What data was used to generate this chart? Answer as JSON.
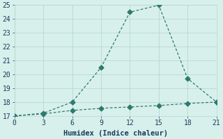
{
  "line1_x": [
    0,
    3,
    6,
    9,
    12,
    15,
    18,
    21
  ],
  "line1_y": [
    17.0,
    17.2,
    18.0,
    20.5,
    24.5,
    25.0,
    19.7,
    18.0
  ],
  "line2_x": [
    0,
    3,
    6,
    9,
    12,
    15,
    18,
    21
  ],
  "line2_y": [
    17.0,
    17.15,
    17.4,
    17.55,
    17.65,
    17.75,
    17.9,
    18.0
  ],
  "line_color": "#2d7a6e",
  "background_color": "#d8f0ec",
  "grid_color": "#b8d8d0",
  "xlabel": "Humidex (Indice chaleur)",
  "xlim": [
    0,
    21
  ],
  "ylim": [
    17,
    25
  ],
  "xticks": [
    0,
    3,
    6,
    9,
    12,
    15,
    18,
    21
  ],
  "yticks": [
    17,
    18,
    19,
    20,
    21,
    22,
    23,
    24,
    25
  ],
  "font_color": "#1a3a5a",
  "markersize": 3.5,
  "linewidth": 0.9,
  "xlabel_fontsize": 7.5,
  "tick_fontsize": 7
}
